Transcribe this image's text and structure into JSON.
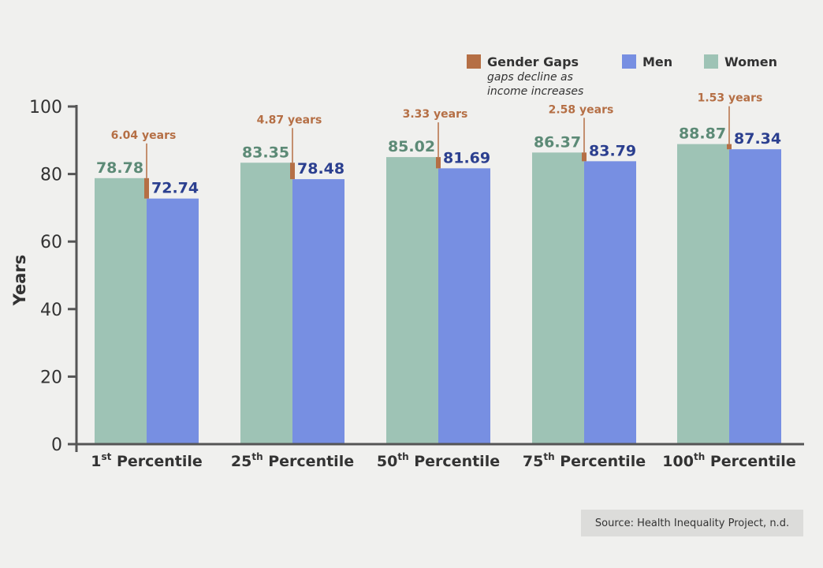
{
  "chart_data": {
    "type": "bar",
    "categories": [
      {
        "base": "1",
        "sup": "st",
        "rest": " Percentile"
      },
      {
        "base": "25",
        "sup": "th",
        "rest": " Percentile"
      },
      {
        "base": "50",
        "sup": "th",
        "rest": " Percentile"
      },
      {
        "base": "75",
        "sup": "th",
        "rest": " Percentile"
      },
      {
        "base": "100",
        "sup": "th",
        "rest": " Percentile"
      }
    ],
    "series": [
      {
        "name": "Women",
        "values": [
          78.78,
          83.35,
          85.02,
          86.37,
          88.87
        ],
        "labels": [
          "78.78",
          "83.35",
          "85.02",
          "86.37",
          "88.87"
        ]
      },
      {
        "name": "Men",
        "values": [
          72.74,
          78.48,
          81.69,
          83.79,
          87.34
        ],
        "labels": [
          "72.74",
          "78.48",
          "81.69",
          "83.79",
          "87.34"
        ]
      }
    ],
    "gaps": {
      "name": "Gender Gaps",
      "values": [
        6.04,
        4.87,
        3.33,
        2.58,
        1.53
      ],
      "labels": [
        "6.04 years",
        "4.87 years",
        "3.33 years",
        "2.58 years",
        "1.53 years"
      ]
    },
    "ylabel": "Years",
    "xlabel": "",
    "ylim": [
      0,
      100
    ],
    "yticks": [
      "0",
      "20",
      "40",
      "60",
      "80",
      "100"
    ],
    "legend": {
      "position": "top-right",
      "gap_note_line1": "gaps decline as",
      "gap_note_line2": "income increases"
    },
    "colors": {
      "women": "#9ec3b5",
      "men": "#778fe2",
      "gap": "#b56f45",
      "axis": "#555555"
    },
    "source": "Source: Health Inequality Project, n.d."
  }
}
